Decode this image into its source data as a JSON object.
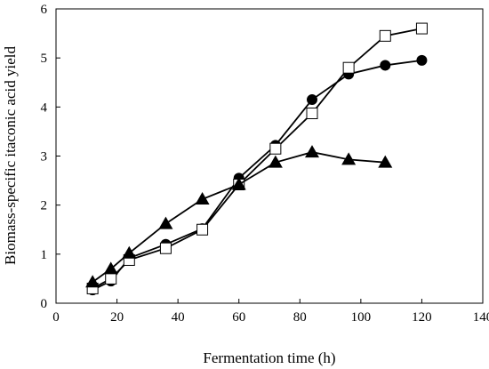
{
  "chart_data": {
    "type": "line",
    "xlabel": "Fermentation time (h)",
    "ylabel": "Biomass-specific itaconic acid yield",
    "xlim": [
      0,
      140
    ],
    "ylim": [
      0,
      6
    ],
    "xticks": [
      0,
      20,
      40,
      60,
      80,
      100,
      120,
      140
    ],
    "yticks": [
      0,
      1,
      2,
      3,
      4,
      5,
      6
    ],
    "grid": false,
    "legend": "none",
    "series": [
      {
        "marker": "circle-filled",
        "color": "#000000",
        "x": [
          12,
          18,
          24,
          36,
          48,
          60,
          72,
          84,
          96,
          108,
          120
        ],
        "y": [
          0.27,
          0.45,
          0.92,
          1.2,
          1.52,
          2.55,
          3.22,
          4.15,
          4.67,
          4.85,
          4.95
        ]
      },
      {
        "marker": "square-open",
        "color": "#000000",
        "x": [
          12,
          18,
          24,
          36,
          48,
          60,
          72,
          84,
          96,
          108,
          120
        ],
        "y": [
          0.3,
          0.5,
          0.88,
          1.12,
          1.5,
          2.42,
          3.15,
          3.87,
          4.8,
          5.45,
          5.6
        ]
      },
      {
        "marker": "triangle-filled",
        "color": "#000000",
        "x": [
          12,
          18,
          24,
          36,
          48,
          60,
          72,
          84,
          96,
          108
        ],
        "y": [
          0.43,
          0.7,
          1.02,
          1.62,
          2.12,
          2.42,
          2.87,
          3.08,
          2.93,
          2.87
        ]
      }
    ]
  }
}
